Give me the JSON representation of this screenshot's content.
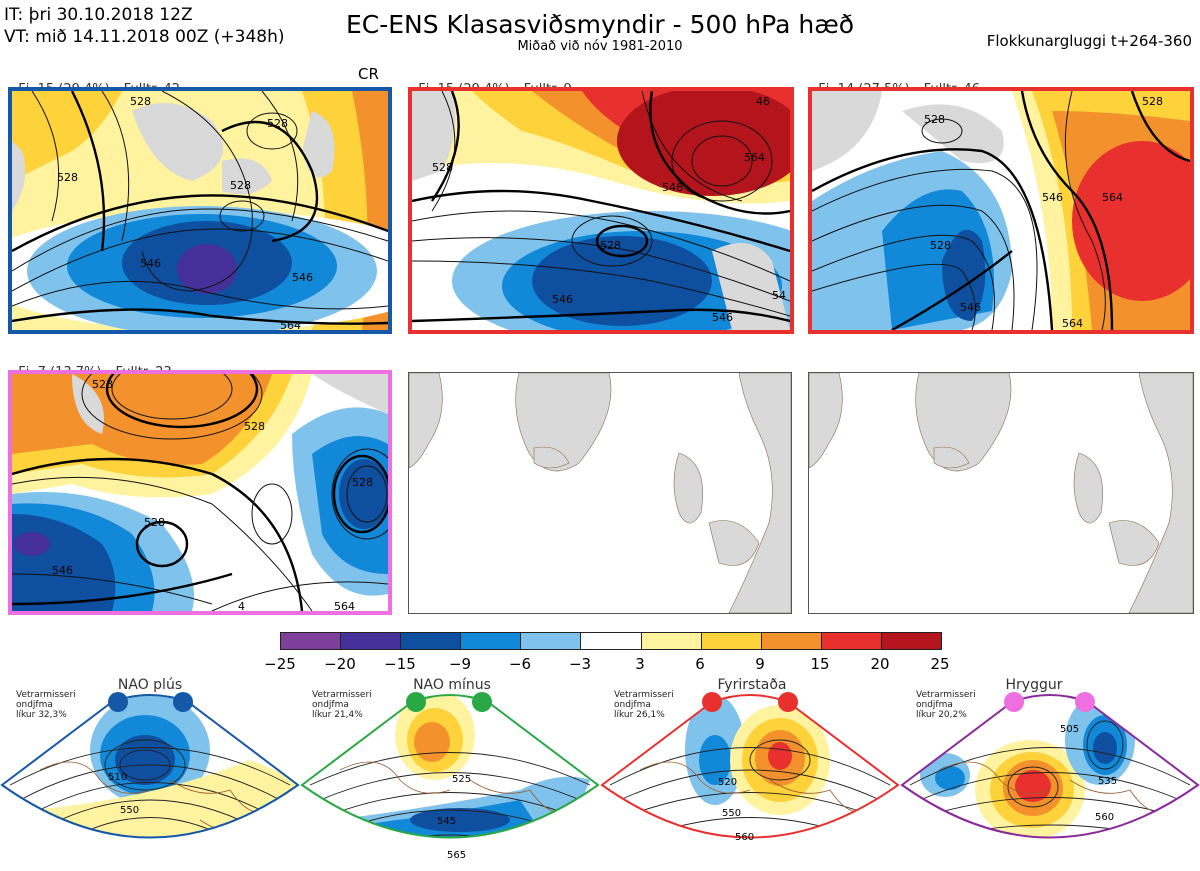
{
  "header": {
    "init_time": "IT: þri 30.10.2018 12Z",
    "valid_time": "VT: mið 14.11.2018 00Z  (+348h)",
    "title": "EC-ENS Klasasviðsmyndir - 500 hPa hæð",
    "subtitle": "Miðað við nóv 1981-2010",
    "window": "Flokkunargluggi t+264-360"
  },
  "clusters": [
    {
      "count": "Fj. 15 (29.4%)",
      "representative": "Fulltr. 42",
      "tag": "CR",
      "border_color": "#1558a8",
      "contour_labels": [
        "528",
        "528",
        "528",
        "546",
        "546",
        "564",
        "528"
      ]
    },
    {
      "count": "Fj. 15 (29.4%)",
      "representative": "Fulltr. 9",
      "tag": "",
      "border_color": "#e8312f",
      "contour_labels": [
        "528",
        "546",
        "564",
        "528",
        "546",
        "546",
        "54",
        "46"
      ]
    },
    {
      "count": "Fj. 14 (27.5%)",
      "representative": "Fulltr. 46",
      "tag": "",
      "border_color": "#e8312f",
      "contour_labels": [
        "528",
        "528",
        "546",
        "564",
        "528",
        "546",
        "564"
      ]
    },
    {
      "count": "Fj. 7 (13.7%)",
      "representative": "Fulltr. 23",
      "tag": "",
      "border_color": "#ee6fe0",
      "contour_labels": [
        "528",
        "528",
        "528",
        "546",
        "528",
        "564",
        "4"
      ]
    }
  ],
  "colorbar": {
    "colors": [
      "#7d3f9a",
      "#45309a",
      "#0e4fa0",
      "#1188d8",
      "#7fc2ec",
      "#ffffff",
      "#fff3a0",
      "#fdd23a",
      "#f3922c",
      "#e8312f",
      "#b4141c"
    ],
    "ticks": [
      "−25",
      "−20",
      "−15",
      "−9",
      "−6",
      "−3",
      "3",
      "6",
      "9",
      "15",
      "20",
      "25"
    ]
  },
  "regimes": [
    {
      "name": "NAO plús",
      "note": [
        "Vetrarmisseri",
        "ondjfma",
        "líkur 32,3%"
      ],
      "color": "#1558a8",
      "contour_labels": [
        "510",
        "550"
      ]
    },
    {
      "name": "NAO mínus",
      "note": [
        "Vetrarmisseri",
        "ondjfma",
        "líkur 21,4%"
      ],
      "color": "#2aa845",
      "contour_labels": [
        "525",
        "545",
        "565"
      ]
    },
    {
      "name": "Fyrirstaða",
      "note": [
        "Vetrarmisseri",
        "ondjfma",
        "líkur 26,1%"
      ],
      "color": "#e8312f",
      "contour_labels": [
        "520",
        "550",
        "560"
      ]
    },
    {
      "name": "Hryggur",
      "note": [
        "Vetrarmisseri",
        "ondjfma",
        "líkur 20,2%"
      ],
      "color": "#ee6fe0",
      "contour_labels": [
        "505",
        "535",
        "560"
      ]
    }
  ]
}
